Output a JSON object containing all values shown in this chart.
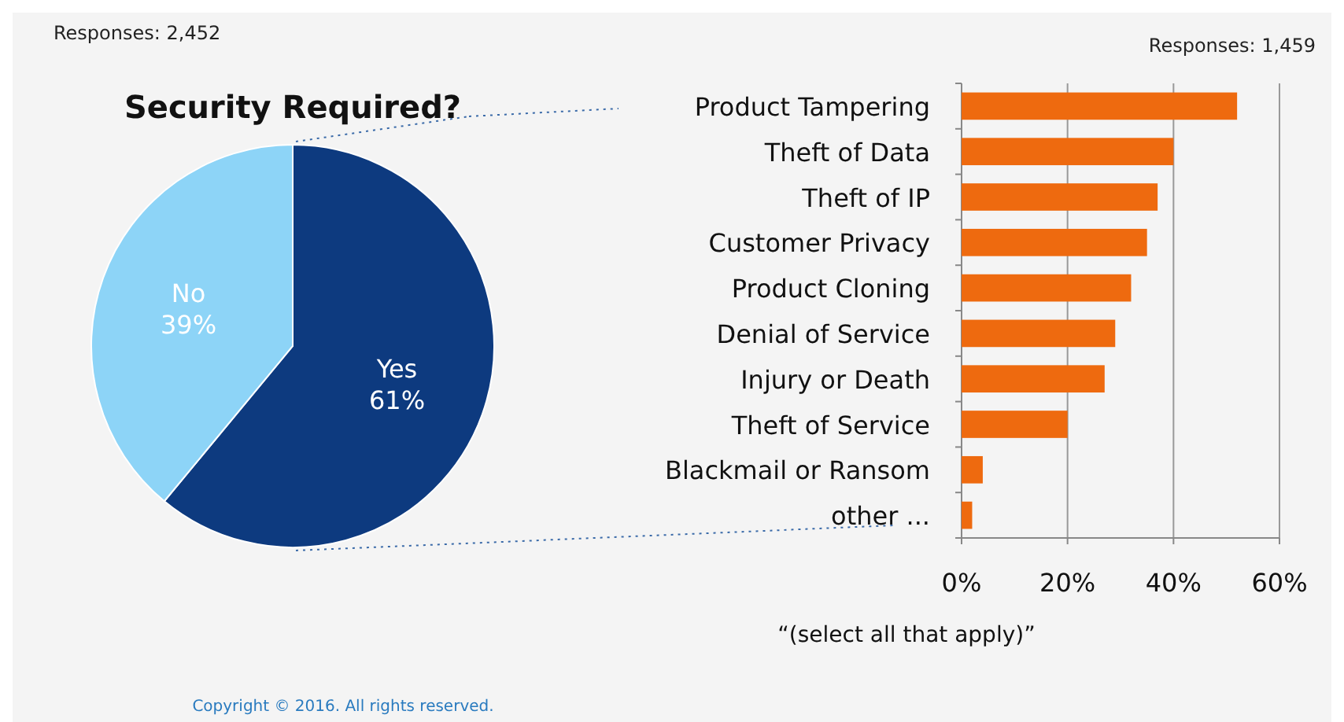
{
  "chart_data": [
    {
      "type": "pie",
      "title": "Security Required?",
      "categories": [
        "Yes",
        "No"
      ],
      "values": [
        61,
        39
      ],
      "colors": [
        "#0d3a7f",
        "#8dd4f7"
      ],
      "value_labels": [
        "61%",
        "39%"
      ],
      "annotations": [
        "Responses: 2,452",
        "Copyright © 2016. All rights reserved."
      ]
    },
    {
      "type": "bar",
      "orientation": "horizontal",
      "categories": [
        "Product Tampering",
        "Theft of Data",
        "Theft of IP",
        "Customer Privacy",
        "Product Cloning",
        "Denial of Service",
        "Injury or Death",
        "Theft of Service",
        "Blackmail or Ransom",
        "other ..."
      ],
      "values": [
        52,
        40,
        37,
        35,
        32,
        29,
        27,
        20,
        4,
        2
      ],
      "color": "#ee6a0f",
      "xlim": [
        0,
        60
      ],
      "xticks": [
        {
          "value": 0,
          "label": "0%"
        },
        {
          "value": 20,
          "label": "20%"
        },
        {
          "value": 40,
          "label": "40%"
        },
        {
          "value": 60,
          "label": "60%"
        }
      ],
      "grid": "x",
      "annotations": [
        "Responses: 1,459",
        "“(select all that apply)”"
      ]
    }
  ]
}
